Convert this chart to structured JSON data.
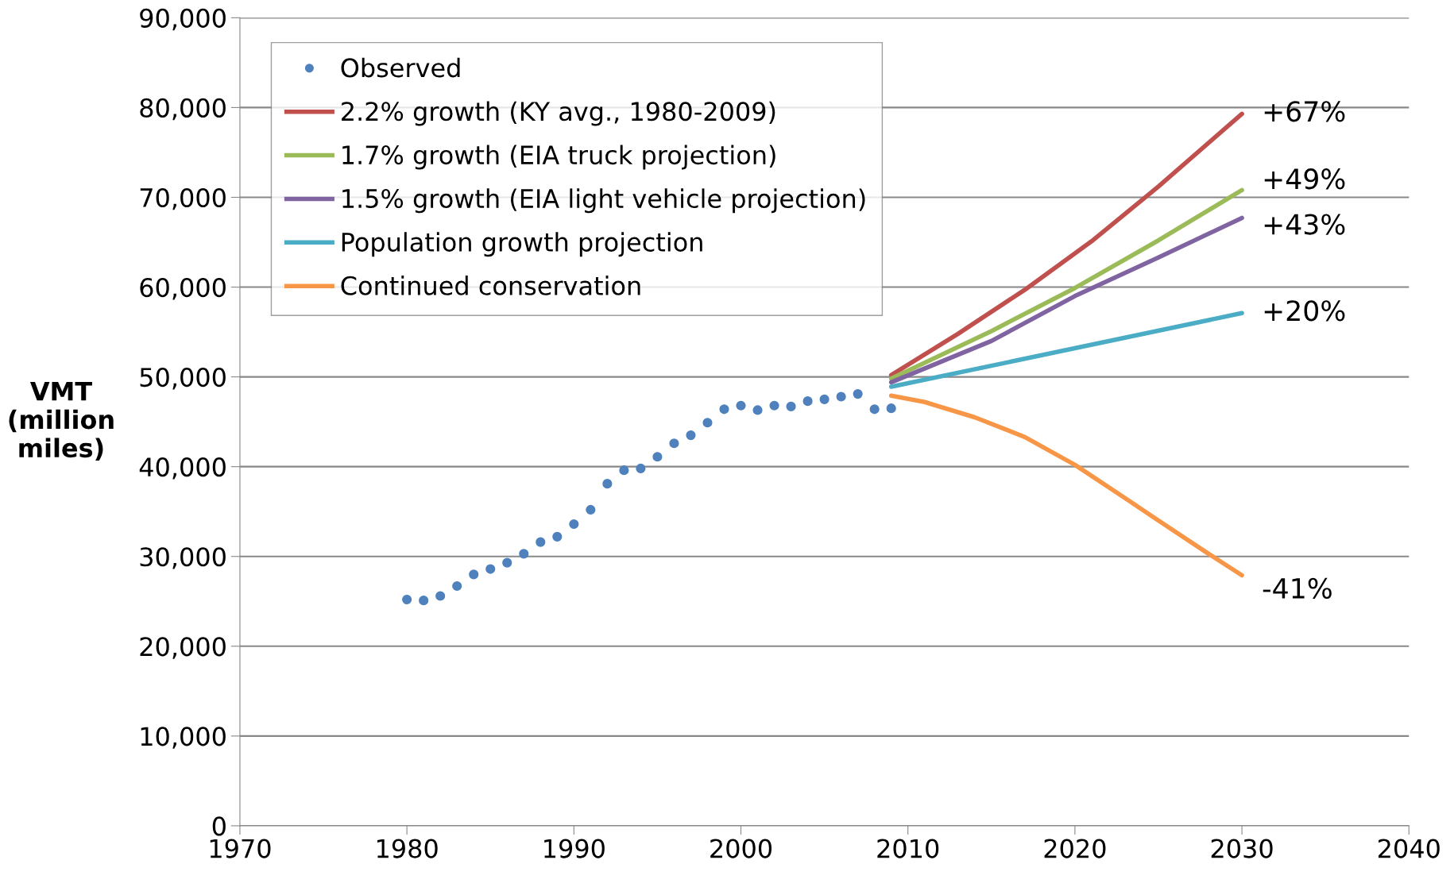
{
  "chart_data": {
    "type": "line",
    "ylabel": "VMT\n(million\nmiles)",
    "xlim": [
      1970,
      2040
    ],
    "xticks": [
      1970,
      1980,
      1990,
      2000,
      2010,
      2020,
      2030,
      2040
    ],
    "ylim": [
      0,
      90000
    ],
    "yticks": [
      {
        "value": 0,
        "label": "0"
      },
      {
        "value": 10000,
        "label": "10,000"
      },
      {
        "value": 20000,
        "label": "20,000"
      },
      {
        "value": 30000,
        "label": "30,000"
      },
      {
        "value": 40000,
        "label": "40,000"
      },
      {
        "value": 50000,
        "label": "50,000"
      },
      {
        "value": 60000,
        "label": "60,000"
      },
      {
        "value": 70000,
        "label": "70,000"
      },
      {
        "value": 80000,
        "label": "80,000"
      },
      {
        "value": 90000,
        "label": "90,000"
      }
    ],
    "grid": "y",
    "legend": "top left",
    "series": [
      {
        "name": "Observed",
        "type": "scatter",
        "marker": "circle",
        "color": "#4f81bd",
        "x": [
          1980,
          1981,
          1982,
          1983,
          1984,
          1985,
          1986,
          1987,
          1988,
          1989,
          1990,
          1991,
          1992,
          1993,
          1994,
          1995,
          1996,
          1997,
          1998,
          1999,
          2000,
          2001,
          2002,
          2003,
          2004,
          2005,
          2006,
          2007,
          2008,
          2009
        ],
        "values": [
          25200,
          25100,
          25600,
          26700,
          28000,
          28600,
          29300,
          30300,
          31600,
          32200,
          33600,
          35200,
          38100,
          39600,
          39800,
          41100,
          42600,
          43500,
          44900,
          46400,
          46800,
          46300,
          46800,
          46700,
          47300,
          47500,
          47800,
          48100,
          46400,
          46500
        ]
      },
      {
        "name": "2.2% growth (KY avg., 1980-2009)",
        "color": "#c0504d",
        "x": [
          2009,
          2013,
          2017,
          2021,
          2025,
          2030
        ],
        "values": [
          50200,
          54800,
          59700,
          65100,
          71200,
          79300
        ]
      },
      {
        "name": "1.7% growth (EIA truck projection)",
        "color": "#9bbb59",
        "x": [
          2009,
          2015,
          2020,
          2025,
          2030
        ],
        "values": [
          49800,
          55100,
          59900,
          65200,
          70800
        ]
      },
      {
        "name": "1.5% growth (EIA light vehicle projection)",
        "color": "#8064a2",
        "x": [
          2009,
          2015,
          2020,
          2025,
          2030
        ],
        "values": [
          49400,
          54000,
          59000,
          63300,
          67700
        ]
      },
      {
        "name": "Population growth projection",
        "color": "#4bacc6",
        "x": [
          2009,
          2030
        ],
        "values": [
          48900,
          57100
        ]
      },
      {
        "name": "Continued conservation",
        "color": "#f79646",
        "x": [
          2009,
          2011,
          2014,
          2017,
          2020,
          2023,
          2025,
          2028,
          2030
        ],
        "values": [
          47900,
          47200,
          45500,
          43300,
          40200,
          36500,
          34000,
          30300,
          27900
        ]
      }
    ],
    "annotations": [
      "+67%",
      "+49%",
      "+43%",
      "+20%",
      "-41%"
    ]
  }
}
